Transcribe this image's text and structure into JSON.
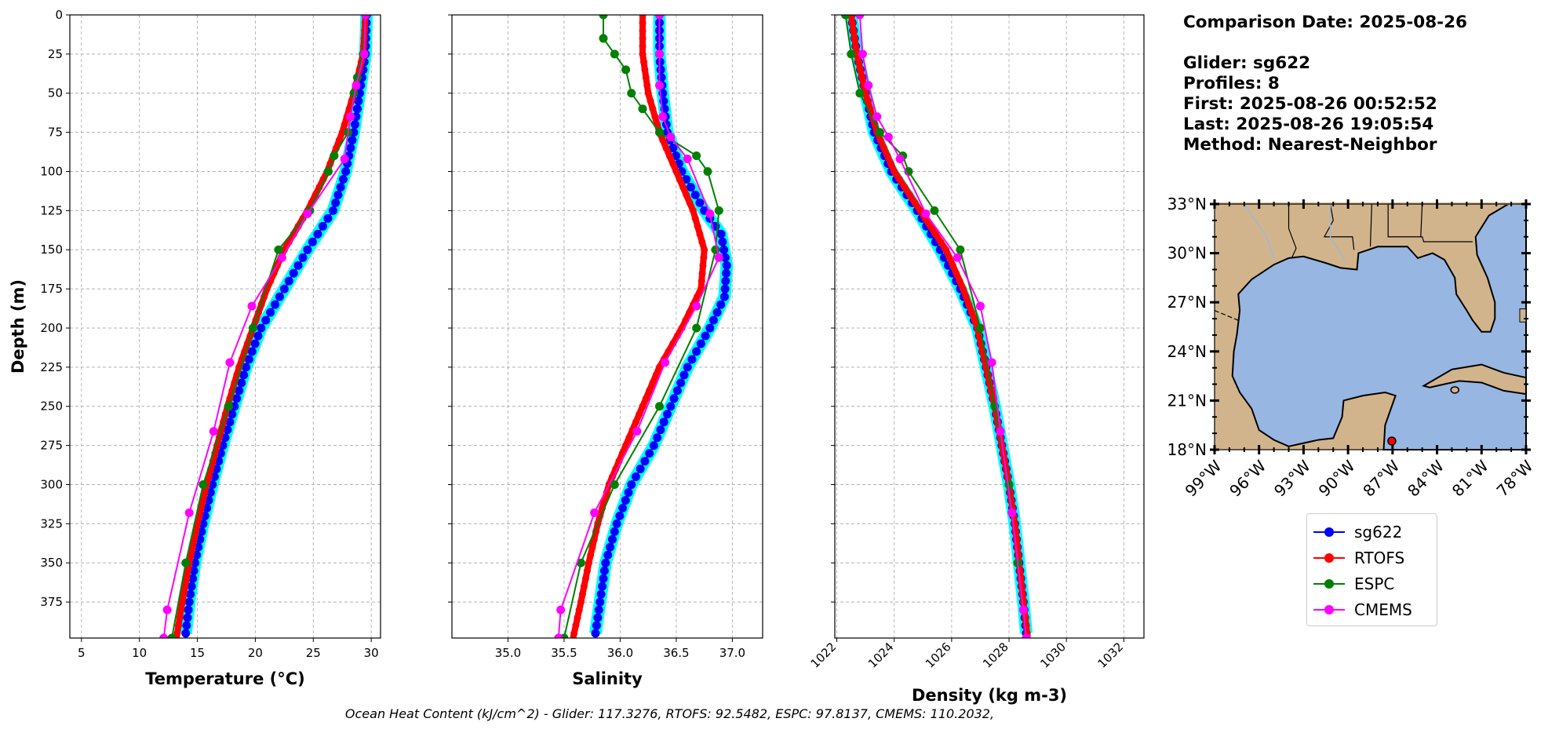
{
  "info": {
    "comparison_date": "Comparison Date: 2025-08-26",
    "glider": "Glider: sg622",
    "profiles": "Profiles: 8",
    "first": "First: 2025-08-26 00:52:52",
    "last": "Last: 2025-08-26 19:05:54",
    "method": "Method: Nearest-Neighbor"
  },
  "footer": "Ocean Heat Content (kJ/cm^2) - Glider: 117.3276,  RTOFS: 92.5482,  ESPC: 97.8137,  CMEMS: 110.2032,",
  "legend": [
    {
      "name": "sg622",
      "color": "#0000ff"
    },
    {
      "name": "RTOFS",
      "color": "#ff0000"
    },
    {
      "name": "ESPC",
      "color": "#008000"
    },
    {
      "name": "CMEMS",
      "color": "#ff00ff"
    }
  ],
  "chart_data": [
    {
      "type": "line",
      "xlabel": "Temperature (°C)",
      "ylabel": "Depth (m)",
      "xlim": [
        4,
        30.8
      ],
      "ylim": [
        398,
        0
      ],
      "xticks": [
        5,
        10,
        15,
        20,
        25,
        30
      ],
      "yticks": [
        0,
        25,
        50,
        75,
        100,
        125,
        150,
        175,
        200,
        225,
        250,
        275,
        300,
        325,
        350,
        375
      ],
      "grid": true,
      "series": [
        {
          "name": "sg622",
          "color": "#0000ff",
          "band_color": "#00ffff",
          "depth": [
            0,
            25,
            50,
            75,
            100,
            125,
            150,
            175,
            200,
            225,
            250,
            275,
            300,
            325,
            350,
            375,
            395
          ],
          "values": [
            29.6,
            29.5,
            29.0,
            28.5,
            27.8,
            26.7,
            24.5,
            22.5,
            20.5,
            19.2,
            18.2,
            17.2,
            16.3,
            15.5,
            14.8,
            14.3,
            14.0
          ]
        },
        {
          "name": "RTOFS",
          "color": "#ff0000",
          "depth": [
            0,
            25,
            50,
            75,
            100,
            125,
            150,
            175,
            200,
            225,
            250,
            275,
            300,
            325,
            350,
            375,
            398
          ],
          "values": [
            29.5,
            29.3,
            28.5,
            27.5,
            26.2,
            24.5,
            22.5,
            21.0,
            19.8,
            18.6,
            17.6,
            16.7,
            15.8,
            15.0,
            14.3,
            13.7,
            13.2
          ]
        },
        {
          "name": "ESPC",
          "color": "#008000",
          "depth": [
            0,
            25,
            40,
            50,
            75,
            90,
            100,
            125,
            150,
            200,
            250,
            300,
            350,
            398
          ],
          "values": [
            29.5,
            29.3,
            28.8,
            28.5,
            28.0,
            26.8,
            26.3,
            24.7,
            22.0,
            19.8,
            17.7,
            15.5,
            14.0,
            12.8
          ]
        },
        {
          "name": "CMEMS",
          "color": "#ff00ff",
          "depth": [
            0,
            25,
            45,
            65,
            92,
            127,
            155,
            186,
            222,
            266,
            318,
            380,
            398
          ],
          "values": [
            29.5,
            29.4,
            28.7,
            28.2,
            27.7,
            24.5,
            22.3,
            19.7,
            17.8,
            16.4,
            14.3,
            12.4,
            12.1
          ]
        }
      ]
    },
    {
      "type": "line",
      "xlabel": "Salinity",
      "xlim": [
        34.5,
        37.27
      ],
      "ylim": [
        398,
        0
      ],
      "xticks": [
        35.0,
        35.5,
        36.0,
        36.5,
        37.0
      ],
      "grid": true,
      "series": [
        {
          "name": "sg622",
          "color": "#0000ff",
          "band_color": "#00ffff",
          "depth": [
            0,
            25,
            50,
            75,
            100,
            125,
            140,
            160,
            180,
            200,
            225,
            250,
            275,
            300,
            325,
            350,
            375,
            395
          ],
          "values": [
            36.35,
            36.35,
            36.38,
            36.42,
            36.55,
            36.75,
            36.9,
            36.95,
            36.93,
            36.8,
            36.6,
            36.45,
            36.3,
            36.1,
            35.97,
            35.87,
            35.82,
            35.78
          ]
        },
        {
          "name": "RTOFS",
          "color": "#ff0000",
          "depth": [
            0,
            25,
            50,
            75,
            100,
            125,
            150,
            175,
            200,
            225,
            250,
            275,
            300,
            325,
            350,
            375,
            398
          ],
          "values": [
            36.2,
            36.2,
            36.25,
            36.35,
            36.5,
            36.65,
            36.75,
            36.72,
            36.55,
            36.35,
            36.2,
            36.05,
            35.9,
            35.8,
            35.72,
            35.65,
            35.58
          ]
        },
        {
          "name": "ESPC",
          "color": "#008000",
          "depth": [
            0,
            15,
            25,
            35,
            50,
            60,
            75,
            90,
            100,
            125,
            150,
            200,
            250,
            300,
            350,
            398
          ],
          "values": [
            35.85,
            35.85,
            35.95,
            36.05,
            36.1,
            36.2,
            36.35,
            36.68,
            36.78,
            36.88,
            36.85,
            36.68,
            36.35,
            35.95,
            35.65,
            35.5
          ]
        },
        {
          "name": "CMEMS",
          "color": "#ff00ff",
          "depth": [
            0,
            25,
            45,
            65,
            78,
            92,
            127,
            155,
            186,
            222,
            266,
            318,
            380,
            398
          ],
          "values": [
            36.35,
            36.35,
            36.35,
            36.38,
            36.45,
            36.6,
            36.8,
            36.88,
            36.68,
            36.4,
            36.15,
            35.77,
            35.47,
            35.45
          ]
        }
      ]
    },
    {
      "type": "line",
      "xlabel": "Density (kg m-3)",
      "xlim": [
        1021.93,
        1032.7
      ],
      "ylim": [
        398,
        0
      ],
      "xticks": [
        1022,
        1024,
        1026,
        1028,
        1030,
        1032
      ],
      "grid": true,
      "series": [
        {
          "name": "sg622",
          "color": "#0000ff",
          "band_color": "#00ffff",
          "depth": [
            0,
            25,
            50,
            75,
            100,
            125,
            150,
            175,
            200,
            225,
            250,
            275,
            300,
            325,
            350,
            375,
            395
          ],
          "values": [
            1022.5,
            1022.7,
            1023.0,
            1023.3,
            1023.9,
            1024.8,
            1025.6,
            1026.3,
            1026.9,
            1027.2,
            1027.5,
            1027.75,
            1028.0,
            1028.2,
            1028.35,
            1028.5,
            1028.6
          ]
        },
        {
          "name": "RTOFS",
          "color": "#ff0000",
          "depth": [
            0,
            25,
            50,
            75,
            100,
            125,
            150,
            175,
            200,
            225,
            250,
            275,
            300,
            325,
            350,
            375,
            398
          ],
          "values": [
            1022.5,
            1022.7,
            1023.0,
            1023.4,
            1024.0,
            1024.9,
            1025.8,
            1026.4,
            1026.9,
            1027.2,
            1027.5,
            1027.75,
            1028.0,
            1028.2,
            1028.35,
            1028.5,
            1028.65
          ]
        },
        {
          "name": "ESPC",
          "color": "#008000",
          "depth": [
            0,
            25,
            50,
            75,
            90,
            100,
            125,
            150,
            200,
            250,
            300,
            350,
            398
          ],
          "values": [
            1022.3,
            1022.5,
            1022.8,
            1023.5,
            1024.3,
            1024.5,
            1025.4,
            1026.3,
            1027.0,
            1027.5,
            1028.0,
            1028.3,
            1028.6
          ]
        },
        {
          "name": "CMEMS",
          "color": "#ff00ff",
          "depth": [
            0,
            25,
            45,
            65,
            78,
            92,
            127,
            155,
            186,
            222,
            266,
            318,
            380,
            398
          ],
          "values": [
            1022.8,
            1022.9,
            1023.1,
            1023.4,
            1023.8,
            1024.2,
            1025.1,
            1026.2,
            1027.0,
            1027.4,
            1027.7,
            1028.1,
            1028.5,
            1028.6
          ]
        }
      ]
    },
    {
      "type": "map",
      "lon_lim": [
        -99,
        -78
      ],
      "lat_lim": [
        18,
        33
      ],
      "xticks": [
        "99°W",
        "96°W",
        "93°W",
        "90°W",
        "87°W",
        "84°W",
        "81°W",
        "78°W"
      ],
      "yticks": [
        "18°N",
        "21°N",
        "24°N",
        "27°N",
        "30°N",
        "33°N"
      ],
      "land_color": "#d2b48c",
      "water_color": "#97b6e1",
      "glider_location": {
        "lon": -87.05,
        "lat": 18.53,
        "color": "#ff0000"
      }
    }
  ]
}
